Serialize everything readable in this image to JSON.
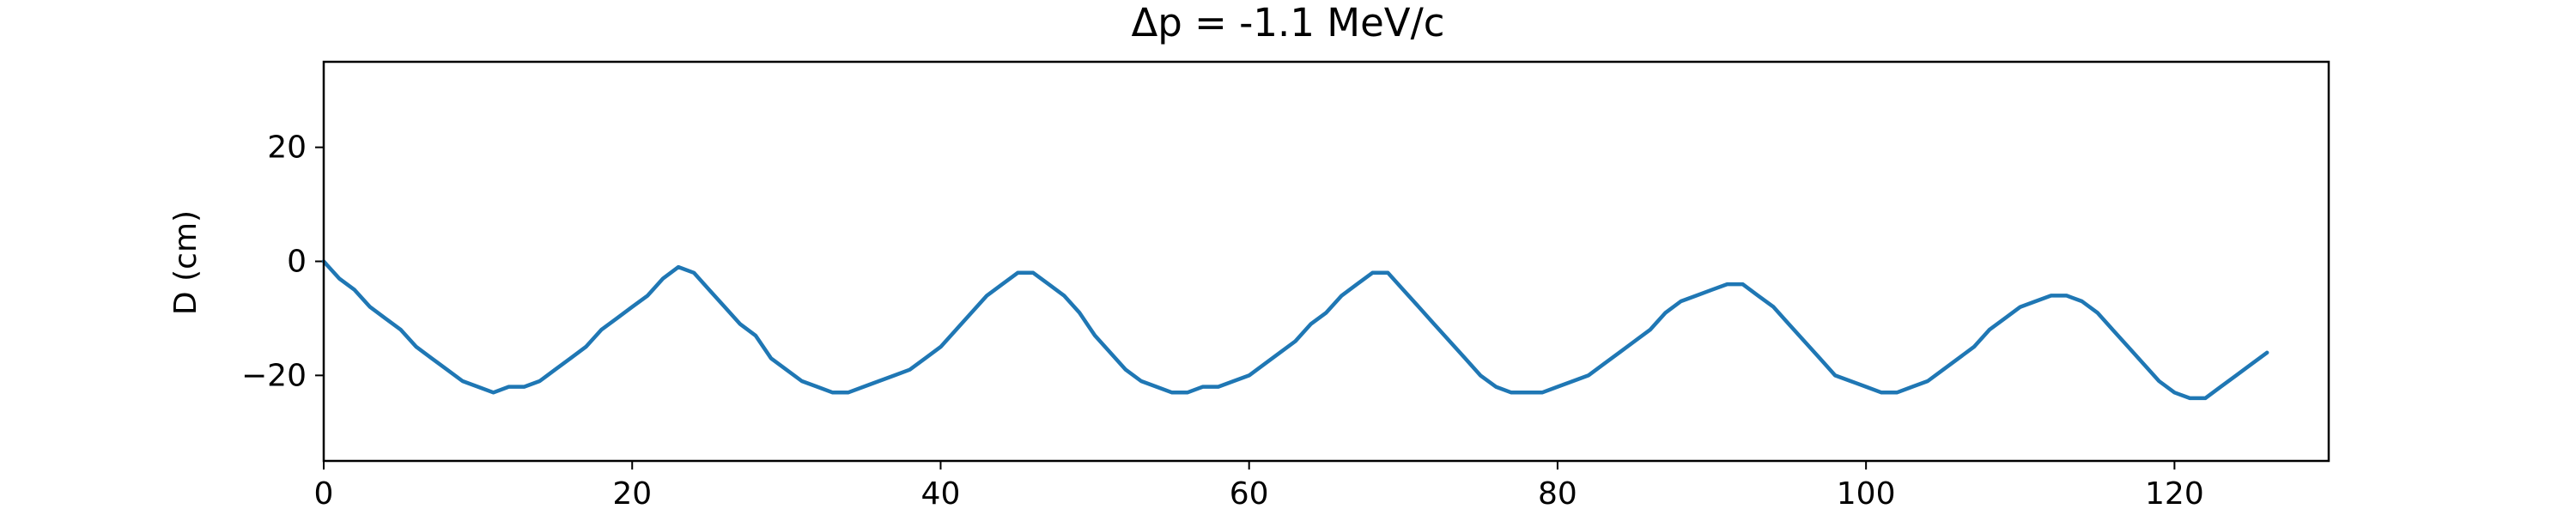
{
  "chart_data": {
    "type": "line",
    "title": "Δp = -1.1 MeV/c",
    "xlabel": "",
    "ylabel": "D (cm)",
    "xlim": [
      0,
      130
    ],
    "ylim": [
      -35,
      35
    ],
    "x_ticks": [
      0,
      20,
      40,
      60,
      80,
      100,
      120
    ],
    "y_ticks": [
      -20,
      0,
      20
    ],
    "x_tick_labels": [
      "0",
      "20",
      "40",
      "60",
      "80",
      "100",
      "120"
    ],
    "y_tick_labels": [
      "−20",
      "0",
      "20"
    ],
    "grid": false,
    "color": "#1f77b4",
    "series": [
      {
        "x": [
          0,
          1,
          2,
          3,
          4,
          5,
          6,
          7,
          8,
          9,
          10,
          11,
          12,
          13,
          14,
          15,
          16,
          17,
          18,
          19,
          20,
          21,
          22,
          23,
          24,
          25,
          26,
          27,
          28,
          29,
          30,
          31,
          32,
          33,
          34,
          35,
          36,
          37,
          38,
          39,
          40,
          41,
          42,
          43,
          44,
          45,
          46,
          47,
          48,
          49,
          50,
          51,
          52,
          53,
          54,
          55,
          56,
          57,
          58,
          59,
          60,
          61,
          62,
          63,
          64,
          65,
          66,
          67,
          68,
          69,
          70,
          71,
          72,
          73,
          74,
          75,
          76,
          77,
          78,
          79,
          80,
          81,
          82,
          83,
          84,
          85,
          86,
          87,
          88,
          89,
          90,
          91,
          92,
          93,
          94,
          95,
          96,
          97,
          98,
          99,
          100,
          101,
          102,
          103,
          104,
          105,
          106,
          107,
          108,
          109,
          110,
          111,
          112,
          113,
          114,
          115,
          116,
          117,
          118,
          119,
          120,
          121,
          122,
          123,
          124,
          125,
          126
        ],
        "y": [
          0,
          -3,
          -5,
          -8,
          -10,
          -12,
          -15,
          -17,
          -19,
          -21,
          -22,
          -23,
          -22,
          -22,
          -21,
          -19,
          -17,
          -15,
          -12,
          -10,
          -8,
          -6,
          -3,
          -1,
          -2,
          -5,
          -8,
          -11,
          -13,
          -17,
          -19,
          -21,
          -22,
          -23,
          -23,
          -22,
          -21,
          -20,
          -19,
          -17,
          -15,
          -12,
          -9,
          -6,
          -4,
          -2,
          -2,
          -4,
          -6,
          -9,
          -13,
          -16,
          -19,
          -21,
          -22,
          -23,
          -23,
          -22,
          -22,
          -21,
          -20,
          -18,
          -16,
          -14,
          -11,
          -9,
          -6,
          -4,
          -2,
          -2,
          -5,
          -8,
          -11,
          -14,
          -17,
          -20,
          -22,
          -23,
          -23,
          -23,
          -22,
          -21,
          -20,
          -18,
          -16,
          -14,
          -12,
          -9,
          -7,
          -6,
          -5,
          -4,
          -4,
          -6,
          -8,
          -11,
          -14,
          -17,
          -20,
          -21,
          -22,
          -23,
          -23,
          -22,
          -21,
          -19,
          -17,
          -15,
          -12,
          -10,
          -8,
          -7,
          -6,
          -6,
          -7,
          -9,
          -12,
          -15,
          -18,
          -21,
          -23,
          -24,
          -24,
          -22,
          -20,
          -18,
          -16
        ]
      }
    ]
  }
}
